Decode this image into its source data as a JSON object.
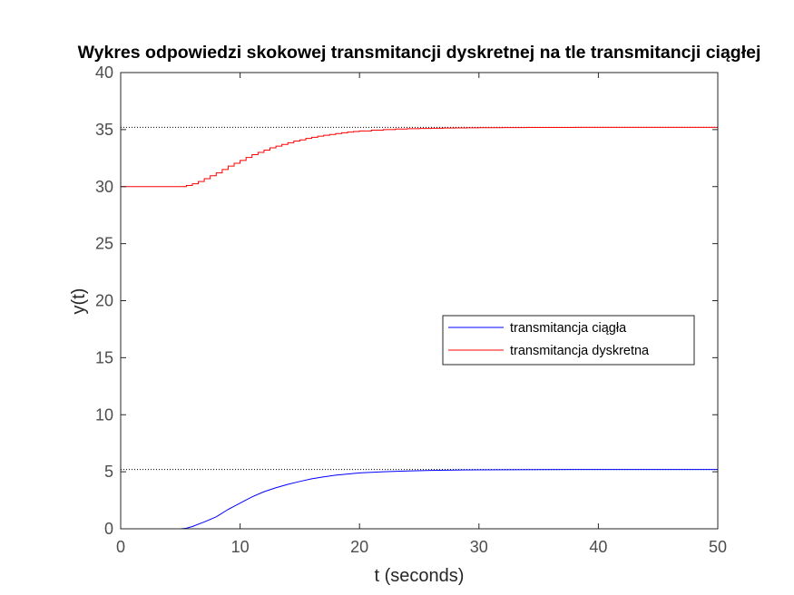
{
  "chart_data": {
    "type": "line",
    "title": "Wykres odpowiedzi skokowej transmitancji dyskretnej na tle transmitancji ciągłej",
    "xlabel": "t (seconds)",
    "ylabel": "y(t)",
    "xlim": [
      0,
      50
    ],
    "ylim": [
      0,
      40
    ],
    "xticks": [
      0,
      10,
      20,
      30,
      40,
      50
    ],
    "yticks": [
      0,
      5,
      10,
      15,
      20,
      25,
      30,
      35,
      40
    ],
    "xtick_labels": [
      "0",
      "10",
      "20",
      "30",
      "40",
      "50"
    ],
    "ytick_labels": [
      "0",
      "5",
      "10",
      "15",
      "20",
      "25",
      "30",
      "35",
      "40"
    ],
    "grid": false,
    "legend_position": "east",
    "series": [
      {
        "name": "transmitancja ciągła",
        "color": "#0000ff",
        "style": "continuous",
        "x": [
          0,
          5,
          5.5,
          6,
          7,
          8,
          9,
          10,
          11,
          12,
          13,
          14,
          15,
          16,
          17,
          18,
          19,
          20,
          22,
          24,
          26,
          28,
          30,
          35,
          40,
          45,
          50
        ],
        "y": [
          0,
          0,
          0.05,
          0.2,
          0.6,
          1.05,
          1.7,
          2.25,
          2.8,
          3.25,
          3.6,
          3.9,
          4.15,
          4.38,
          4.55,
          4.7,
          4.8,
          4.9,
          5.0,
          5.07,
          5.12,
          5.15,
          5.17,
          5.19,
          5.2,
          5.2,
          5.2
        ]
      },
      {
        "name": "transmitancja dyskretna",
        "color": "#ff0000",
        "style": "stairs",
        "x": [
          0,
          5,
          5.5,
          6,
          6.5,
          7,
          7.5,
          8,
          8.5,
          9,
          9.5,
          10,
          10.5,
          11,
          11.5,
          12,
          12.5,
          13,
          13.5,
          14,
          14.5,
          15,
          15.5,
          16,
          16.5,
          17,
          17.5,
          18,
          18.5,
          19,
          19.5,
          20,
          21,
          22,
          23,
          24,
          25,
          26,
          27,
          28,
          29,
          30,
          32,
          34,
          36,
          38,
          40,
          45,
          50
        ],
        "y": [
          30,
          30,
          30.1,
          30.25,
          30.45,
          30.7,
          30.95,
          31.2,
          31.5,
          31.8,
          32.05,
          32.3,
          32.55,
          32.8,
          33.0,
          33.2,
          33.4,
          33.55,
          33.7,
          33.85,
          34.0,
          34.1,
          34.22,
          34.32,
          34.42,
          34.5,
          34.57,
          34.65,
          34.72,
          34.78,
          34.83,
          34.88,
          34.95,
          35.0,
          35.05,
          35.08,
          35.1,
          35.12,
          35.14,
          35.15,
          35.16,
          35.17,
          35.18,
          35.19,
          35.19,
          35.2,
          35.2,
          35.2,
          35.2
        ]
      }
    ],
    "reference_lines": [
      {
        "y": 35.2,
        "color": "#000000",
        "style": "dotted"
      },
      {
        "y": 5.2,
        "color": "#000000",
        "style": "dotted"
      }
    ]
  }
}
